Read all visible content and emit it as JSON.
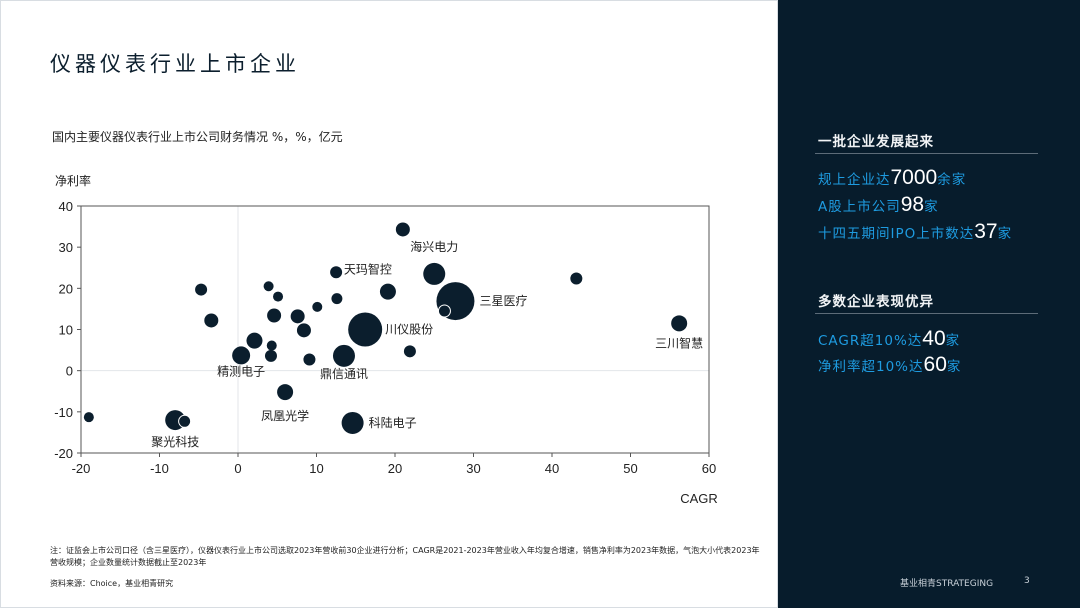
{
  "slide": {
    "title": "仪器仪表行业上市企业",
    "subtitle": "国内主要仪器仪表行业上市公司财务情况 %，%，亿元",
    "note": "注：证监会上市公司口径（含三星医疗），仪器仪表行业上市公司选取2023年营收前30企业进行分析；CAGR是2021-2023年营业收入年均复合增速，销售净利率为2023年数据，气泡大小代表2023年营收规模；企业数量统计数据截止至2023年",
    "source": "资料来源：Choice，基业相青研究",
    "brand": "基业相青STRATEGING",
    "page_number": "3"
  },
  "panel": {
    "section1": {
      "heading": "一批企业发展起来",
      "stats": [
        {
          "pre": "规上企业达",
          "num": "7000",
          "post": "余家"
        },
        {
          "pre": "A股上市公司",
          "num": "98",
          "post": "家"
        },
        {
          "pre": "十四五期间IPO上市数达",
          "num": "37",
          "post": "家"
        }
      ]
    },
    "section2": {
      "heading": "多数企业表现优异",
      "stats": [
        {
          "pre": "CAGR超10%达",
          "num": "40",
          "post": "家"
        },
        {
          "pre": "净利率超10%达",
          "num": "60",
          "post": "家"
        }
      ]
    },
    "colors": {
      "background": "#071c2c",
      "accent": "#1e9be0",
      "number": "#ffffff"
    }
  },
  "chart_data": {
    "type": "bubble",
    "xlabel": "CAGR",
    "ylabel": "净利率",
    "xlim": [
      -20,
      60
    ],
    "ylim": [
      -20,
      40
    ],
    "xticks": [
      -20,
      -10,
      0,
      10,
      20,
      30,
      40,
      50,
      60
    ],
    "yticks": [
      -20,
      -10,
      0,
      10,
      20,
      30,
      40
    ],
    "grid": "zero-lines only",
    "bubble_color": "#0b1e2d",
    "size_meaning": "2023年营收规模 (relative)",
    "points": [
      {
        "x": -19,
        "y": -11.3,
        "size": 25
      },
      {
        "x": -8,
        "y": -12,
        "size": 100,
        "label": "聚光科技"
      },
      {
        "x": -6.8,
        "y": -12.3,
        "size": 36,
        "outlined": true
      },
      {
        "x": -4.7,
        "y": 19.7,
        "size": 36
      },
      {
        "x": -3.4,
        "y": 12.2,
        "size": 49
      },
      {
        "x": 0.4,
        "y": 3.7,
        "size": 81,
        "label": "精测电子"
      },
      {
        "x": 2.1,
        "y": 7.3,
        "size": 64
      },
      {
        "x": 3.9,
        "y": 20.5,
        "size": 25
      },
      {
        "x": 4.3,
        "y": 6.1,
        "size": 25
      },
      {
        "x": 4.2,
        "y": 3.6,
        "size": 36
      },
      {
        "x": 4.6,
        "y": 13.4,
        "size": 49
      },
      {
        "x": 5.1,
        "y": 18,
        "size": 25
      },
      {
        "x": 7.6,
        "y": 13.2,
        "size": 49
      },
      {
        "x": 8.4,
        "y": 9.8,
        "size": 49
      },
      {
        "x": 6,
        "y": -5.2,
        "size": 64,
        "label": "凤凰光学"
      },
      {
        "x": 9.1,
        "y": 2.7,
        "size": 36
      },
      {
        "x": 10.1,
        "y": 15.5,
        "size": 25
      },
      {
        "x": 12.5,
        "y": 23.9,
        "size": 36
      },
      {
        "x": 12.6,
        "y": 17.5,
        "size": 30
      },
      {
        "x": 13.5,
        "y": 3.6,
        "size": 121,
        "label": "鼎信通讯"
      },
      {
        "x": 16.2,
        "y": 10,
        "size": 289,
        "label": "川仪股份"
      },
      {
        "x": 14.6,
        "y": -12.7,
        "size": 121,
        "label": "科陆电子"
      },
      {
        "x": 19.1,
        "y": 19.2,
        "size": 64,
        "label": "天玛智控"
      },
      {
        "x": 21,
        "y": 34.3,
        "size": 49
      },
      {
        "x": 21.9,
        "y": 4.7,
        "size": 36
      },
      {
        "x": 25,
        "y": 23.5,
        "size": 121,
        "label": "海兴电力"
      },
      {
        "x": 27.7,
        "y": 16.9,
        "size": 361,
        "label": "三星医疗"
      },
      {
        "x": 26.3,
        "y": 14.5,
        "size": 36,
        "outlined": true
      },
      {
        "x": 43.1,
        "y": 22.4,
        "size": 36
      },
      {
        "x": 56.2,
        "y": 11.5,
        "size": 64,
        "label": "三川智慧"
      }
    ]
  }
}
